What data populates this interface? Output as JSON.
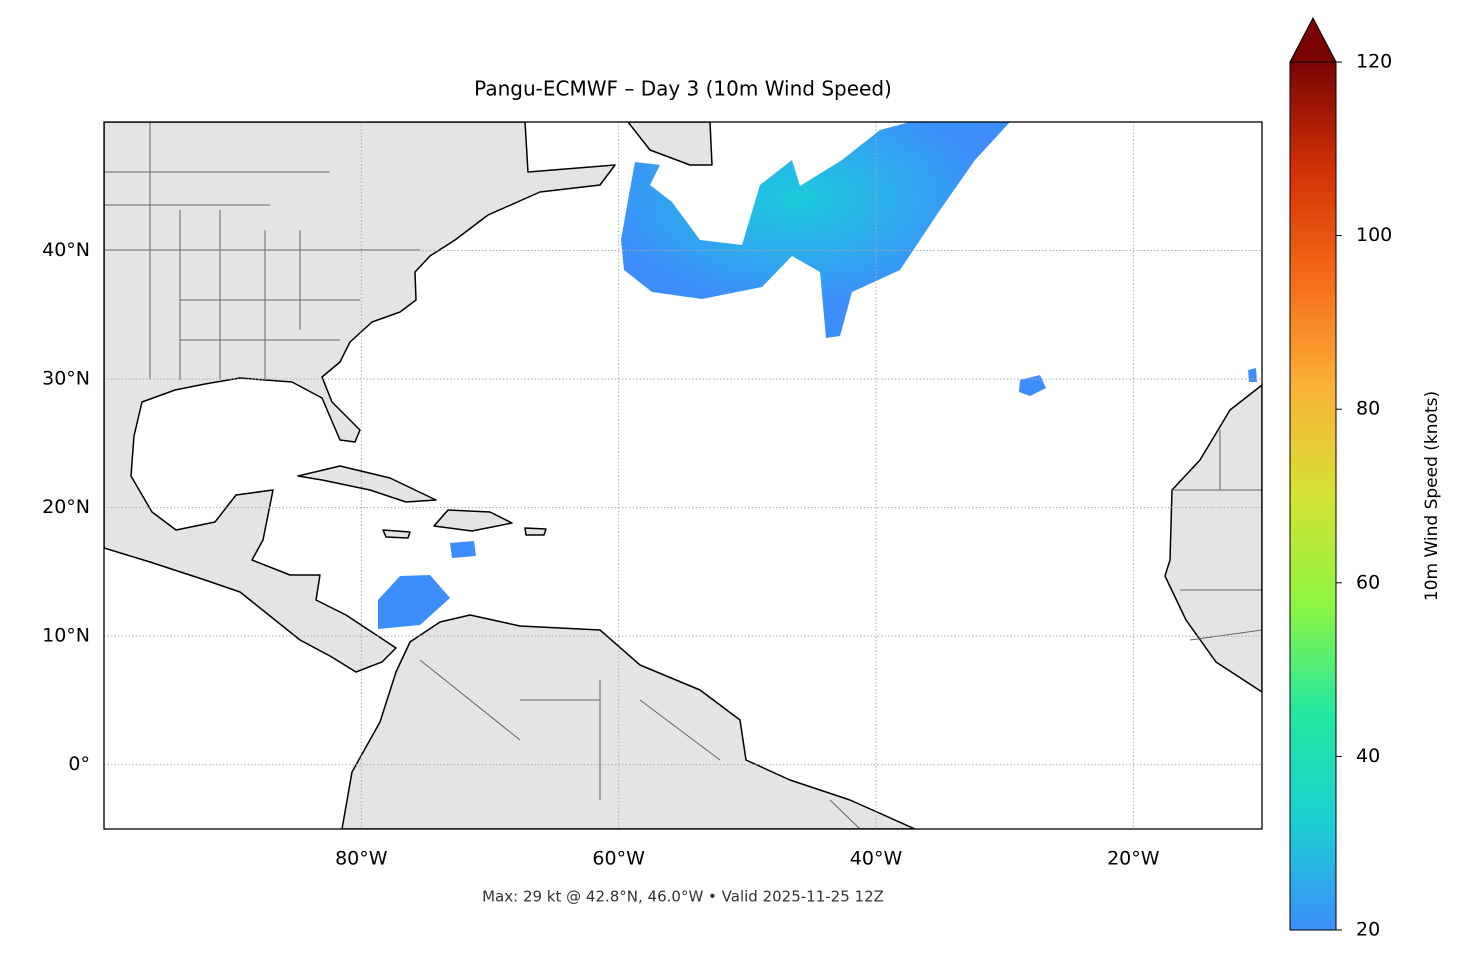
{
  "chart_data": {
    "type": "map",
    "title": "Pangu-ECMWF – Day 3 (10m Wind Speed)",
    "footer": "Max: 29 kt @ 42.8°N, 46.0°W • Valid 2025-11-25 12Z",
    "xlim": [
      -100,
      -10
    ],
    "ylim": [
      -5,
      50
    ],
    "xticks": [
      {
        "value": -80,
        "label": "80°W"
      },
      {
        "value": -60,
        "label": "60°W"
      },
      {
        "value": -40,
        "label": "40°W"
      },
      {
        "value": -20,
        "label": "20°W"
      }
    ],
    "yticks": [
      {
        "value": 0,
        "label": "0°"
      },
      {
        "value": 10,
        "label": "10°N"
      },
      {
        "value": 20,
        "label": "20°N"
      },
      {
        "value": 30,
        "label": "30°N"
      },
      {
        "value": 40,
        "label": "40°N"
      }
    ],
    "grid": true,
    "colorbar": {
      "label": "10m Wind Speed (knots)",
      "lim": [
        20,
        120
      ],
      "ticks": [
        20,
        40,
        60,
        80,
        100,
        120
      ],
      "colormap": [
        "#3d8efc",
        "#1bcfd4",
        "#23e8a0",
        "#8ef542",
        "#d4e234",
        "#fbb238",
        "#f66b19",
        "#d23105",
        "#7a0403"
      ]
    }
  }
}
